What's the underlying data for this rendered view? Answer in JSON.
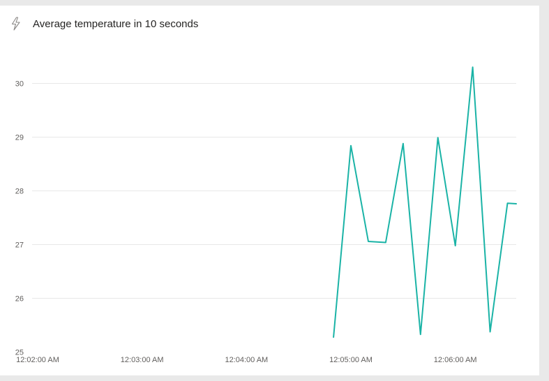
{
  "card": {
    "title": "Average temperature in 10 seconds",
    "icon": "lightning-bolt-icon"
  },
  "colors": {
    "line": "#1ab3a6",
    "grid": "#e8e8e8",
    "background": "#ffffff",
    "frame": "#e9e9e9"
  },
  "chart_data": {
    "type": "line",
    "title": "Average temperature in 10 seconds",
    "xlabel": "",
    "ylabel": "",
    "x_ticks": [
      "12:02:00 AM",
      "12:03:00 AM",
      "12:04:00 AM",
      "12:05:00 AM",
      "12:06:00 AM"
    ],
    "y_ticks": [
      25,
      26,
      27,
      28,
      29,
      30
    ],
    "xlim": [
      "12:02:00 AM",
      "12:06:35 AM"
    ],
    "ylim": [
      25,
      30.5
    ],
    "grid": true,
    "series": [
      {
        "x": [
          "12:04:50 AM",
          "12:05:00 AM",
          "12:05:10 AM",
          "12:05:20 AM",
          "12:05:30 AM",
          "12:05:40 AM",
          "12:05:50 AM",
          "12:06:00 AM",
          "12:06:10 AM",
          "12:06:20 AM",
          "12:06:30 AM",
          "12:06:35 AM"
        ],
        "values": [
          25.27,
          28.83,
          27.05,
          27.03,
          28.87,
          25.32,
          28.98,
          26.97,
          30.29,
          25.37,
          27.76,
          27.75
        ]
      }
    ]
  }
}
